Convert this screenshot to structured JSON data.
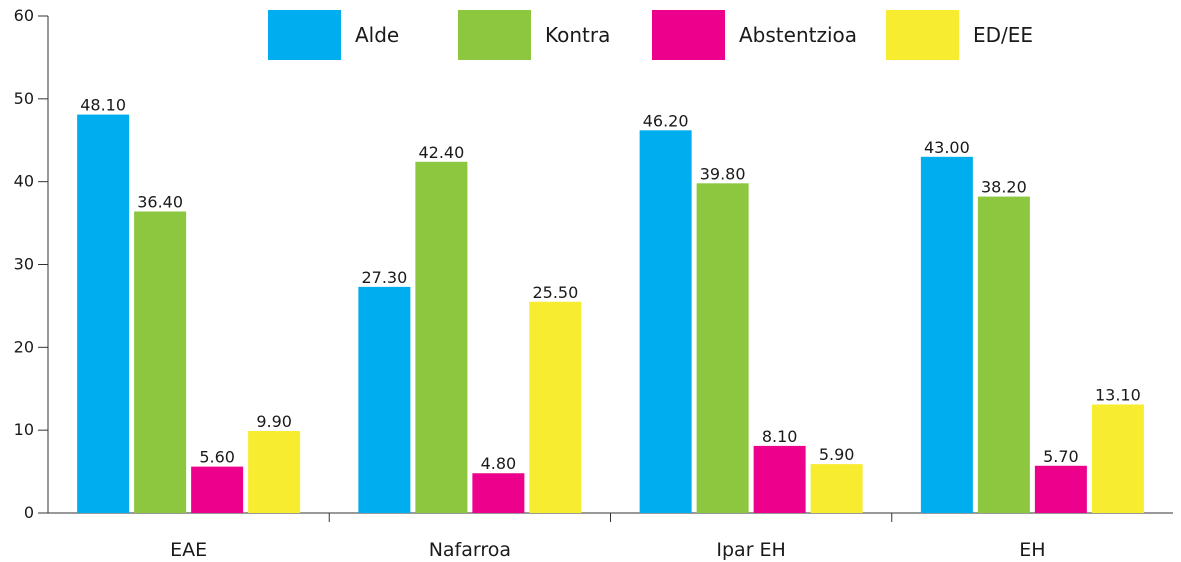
{
  "chart_data": {
    "type": "bar",
    "title": "",
    "xlabel": "",
    "ylabel": "",
    "ylim": [
      0,
      60
    ],
    "yticks": [
      0,
      10,
      20,
      30,
      40,
      50,
      60
    ],
    "grid": false,
    "legend_position": "top",
    "categories": [
      "EAE",
      "Nafarroa",
      "Ipar EH",
      "EH"
    ],
    "series": [
      {
        "name": "Alde",
        "color": "#00aeef",
        "values": [
          48.1,
          27.3,
          46.2,
          43.0
        ]
      },
      {
        "name": "Kontra",
        "color": "#8dc63f",
        "values": [
          36.4,
          42.4,
          39.8,
          38.2
        ]
      },
      {
        "name": "Abstentzioa",
        "color": "#ec008c",
        "values": [
          5.6,
          4.8,
          8.1,
          5.7
        ]
      },
      {
        "name": "ED/EE",
        "color": "#f7ec30",
        "values": [
          9.9,
          25.5,
          5.9,
          13.1
        ]
      }
    ],
    "data_labels": true,
    "data_label_decimals": 2
  }
}
